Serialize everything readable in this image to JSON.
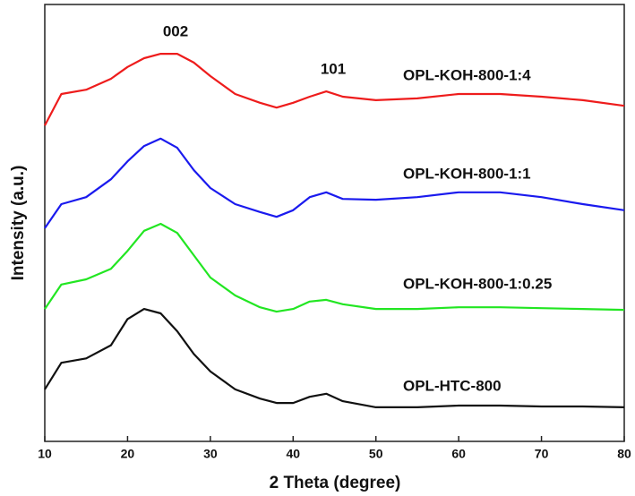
{
  "chart_data": {
    "type": "line",
    "x_label": "2 Theta (degree)",
    "y_label": "Intensity (a.u.)",
    "annotations": [
      "002",
      "101"
    ],
    "x": [
      10,
      12,
      15,
      18,
      20,
      22,
      24,
      26,
      28,
      30,
      33,
      36,
      38,
      40,
      42,
      44,
      46,
      50,
      55,
      60,
      65,
      70,
      75,
      80
    ],
    "series": [
      {
        "name": "OPL-KOH-800-1:4",
        "color": "#ee1c1c",
        "values": [
          72.3,
          79.5,
          80.5,
          83,
          85.7,
          87.7,
          88.7,
          88.7,
          86.7,
          83.6,
          79.5,
          77.5,
          76.4,
          77.5,
          78.9,
          80.1,
          78.9,
          78.1,
          78.5,
          79.5,
          79.5,
          78.9,
          78.1,
          76.8
        ]
      },
      {
        "name": "OPL-KOH-800-1:1",
        "color": "#1a1aee",
        "values": [
          48.8,
          54.3,
          55.9,
          60,
          64.1,
          67.6,
          69.3,
          67.2,
          62.1,
          58,
          54.3,
          52.5,
          51.4,
          52.9,
          55.9,
          57,
          55.5,
          55.3,
          55.9,
          57,
          57,
          55.9,
          54.3,
          52.9
        ]
      },
      {
        "name": "OPL-KOH-800-1:0.25",
        "color": "#22e622",
        "values": [
          30.3,
          35.9,
          37.1,
          39.5,
          43.6,
          48.2,
          49.8,
          47.7,
          42.6,
          37.5,
          33.4,
          30.7,
          29.7,
          30.3,
          32,
          32.4,
          31.4,
          30.3,
          30.3,
          30.7,
          30.7,
          30.5,
          30.3,
          30.1
        ]
      },
      {
        "name": "OPL-HTC-800",
        "color": "#111111",
        "values": [
          11.9,
          18,
          19,
          22,
          28,
          30.3,
          29.3,
          25.2,
          20,
          16,
          11.9,
          9.8,
          8.8,
          8.8,
          10.2,
          10.9,
          9.2,
          7.8,
          7.8,
          8.2,
          8.2,
          8,
          8,
          7.8
        ]
      }
    ],
    "xlim": [
      10,
      80
    ],
    "xticks": [
      10,
      20,
      30,
      40,
      50,
      60,
      70,
      80
    ],
    "ylim": [
      0,
      100
    ]
  }
}
